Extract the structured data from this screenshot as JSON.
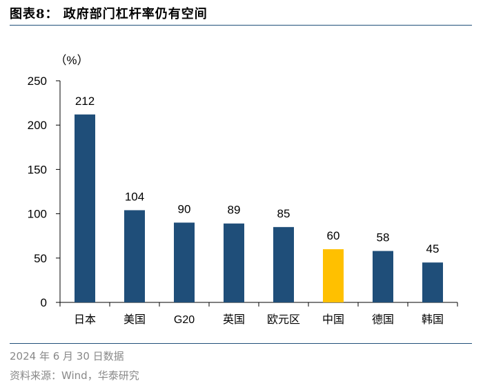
{
  "header": {
    "title": "图表8：  政府部门杠杆率仍有空间"
  },
  "footer": {
    "date_note": "2024 年 6 月 30 日数据",
    "source": "资料来源：Wind，华泰研究"
  },
  "colors": {
    "primary_bar": "#1f4e79",
    "highlight_bar": "#ffc000",
    "axis": "#000000",
    "rule": "#1f4e79"
  },
  "chart_data": {
    "type": "bar",
    "unit_label": "（%）",
    "categories": [
      "日本",
      "美国",
      "G20",
      "英国",
      "欧元区",
      "中国",
      "德国",
      "韩国"
    ],
    "values": [
      212,
      104,
      90,
      89,
      85,
      60,
      58,
      45
    ],
    "data_labels": [
      "212",
      "104",
      "90",
      "89",
      "85",
      "60",
      "58",
      "45"
    ],
    "highlight_category": "中国",
    "ylim": [
      0,
      250
    ],
    "yticks": [
      0,
      50,
      100,
      150,
      200,
      250
    ],
    "ytick_labels": [
      "0",
      "50",
      "100",
      "150",
      "200",
      "250"
    ],
    "grid": false,
    "legend": "none"
  }
}
